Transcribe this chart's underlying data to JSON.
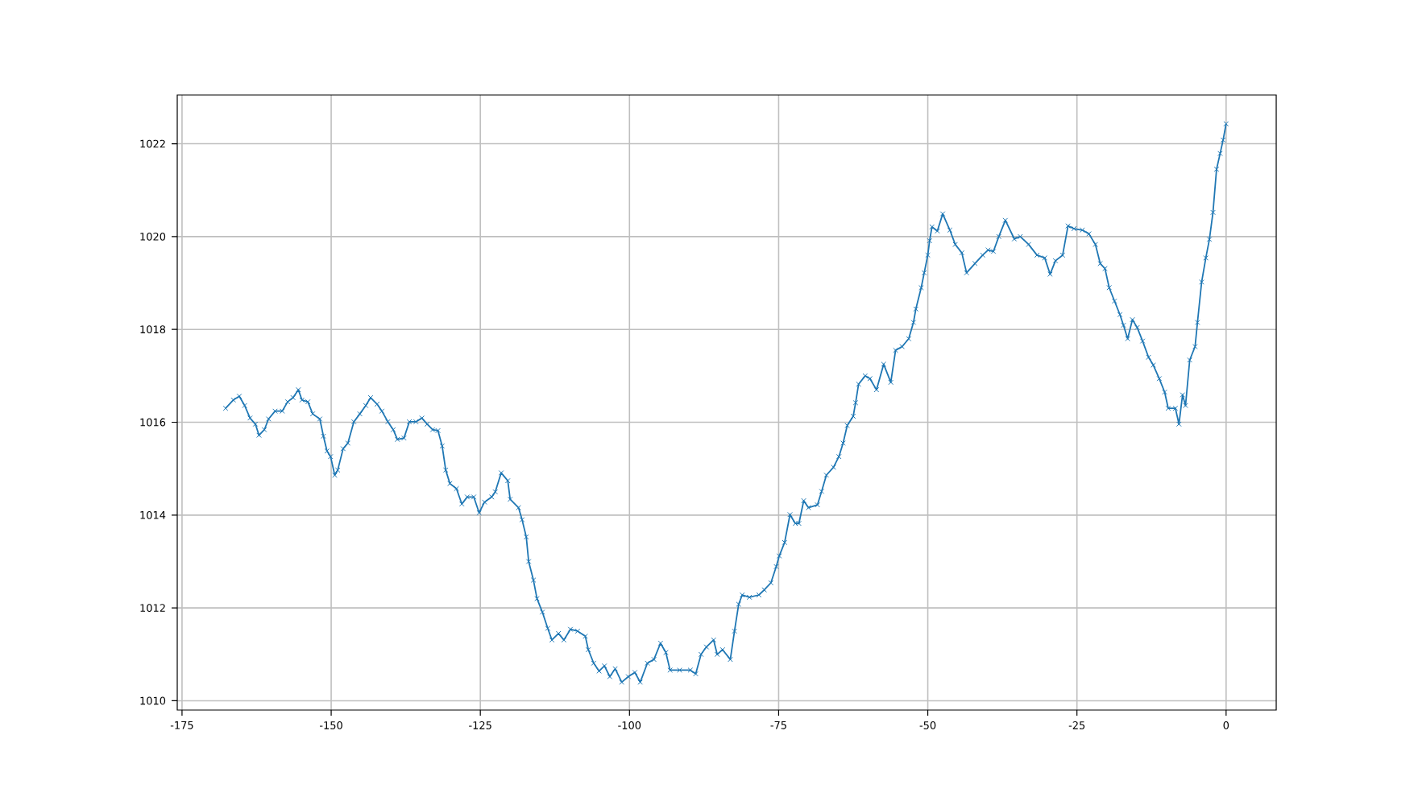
{
  "chart_data": {
    "type": "line",
    "xlim": [
      -175.8,
      8.4
    ],
    "ylim": [
      1009.8,
      1023.05
    ],
    "xticks": [
      -175,
      -150,
      -125,
      -100,
      -75,
      -50,
      -25,
      0
    ],
    "yticks": [
      1010,
      1012,
      1014,
      1016,
      1018,
      1020,
      1022
    ],
    "grid": true,
    "marker": "cross",
    "line_style": "solid",
    "series": [
      {
        "color": "#1f77b4",
        "x": [
          -167.7,
          -166.4,
          -165.4,
          -164.5,
          -163.6,
          -162.7,
          -162.1,
          -161.2,
          -160.5,
          -159.4,
          -158.2,
          -157.3,
          -156.4,
          -155.5,
          -154.9,
          -153.9,
          -153.1,
          -151.9,
          -151.3,
          -150.7,
          -150.1,
          -149.4,
          -148.9,
          -148,
          -147.2,
          -146.2,
          -145.2,
          -144.2,
          -143.4,
          -142.3,
          -141.5,
          -140.5,
          -139.6,
          -138.9,
          -137.8,
          -136.9,
          -135.8,
          -134.8,
          -133.9,
          -133,
          -132.1,
          -131.4,
          -130.8,
          -130.1,
          -129,
          -128.1,
          -127.2,
          -126.1,
          -125.2,
          -124.3,
          -123.1,
          -122.5,
          -121.5,
          -120.4,
          -120,
          -118.6,
          -118,
          -117.3,
          -116.9,
          -116.1,
          -115.5,
          -114.6,
          -113.7,
          -113,
          -111.9,
          -111,
          -109.9,
          -108.7,
          -107.4,
          -106.9,
          -106,
          -105.1,
          -104.2,
          -103.3,
          -102.4,
          -101.3,
          -100.2,
          -99.1,
          -98.2,
          -97,
          -95.9,
          -94.8,
          -93.9,
          -93.2,
          -91.6,
          -89.8,
          -88.9,
          -88,
          -87.1,
          -85.9,
          -85.3,
          -84.4,
          -83.1,
          -82.4,
          -81.7,
          -81.1,
          -79.9,
          -78.3,
          -77.4,
          -76.3,
          -75.4,
          -74.9,
          -74,
          -73.1,
          -72.2,
          -71.6,
          -70.8,
          -70,
          -68.5,
          -67.8,
          -67,
          -65.8,
          -64.9,
          -64.2,
          -63.5,
          -62.5,
          -62.1,
          -61.6,
          -60.5,
          -59.7,
          -58.6,
          -57.4,
          -56.2,
          -55.4,
          -54.3,
          -53.2,
          -52.4,
          -52,
          -51.1,
          -50.6,
          -50,
          -49.7,
          -49.3,
          -48.4,
          -47.5,
          -46.3,
          -45.4,
          -44.3,
          -43.5,
          -42.1,
          -40.8,
          -39.9,
          -39,
          -38.1,
          -37,
          -35.5,
          -34.5,
          -33.1,
          -31.7,
          -30.4,
          -29.5,
          -28.6,
          -27.4,
          -26.5,
          -25.5,
          -24.1,
          -23,
          -21.9,
          -21.1,
          -20.3,
          -19.6,
          -18.7,
          -17.8,
          -17.2,
          -16.5,
          -15.7,
          -14.9,
          -14,
          -13,
          -12.2,
          -11.2,
          -10.3,
          -9.7,
          -8.5,
          -7.9,
          -7.3,
          -6.8,
          -6.1,
          -5.2,
          -4.8,
          -4.1,
          -3.4,
          -2.8,
          -2.2,
          -1.6,
          -1,
          -0.5,
          0
        ],
        "values": [
          1016.3,
          1016.48,
          1016.56,
          1016.36,
          1016.09,
          1015.96,
          1015.72,
          1015.84,
          1016.07,
          1016.24,
          1016.24,
          1016.44,
          1016.53,
          1016.7,
          1016.48,
          1016.44,
          1016.18,
          1016.07,
          1015.7,
          1015.38,
          1015.26,
          1014.86,
          1014.97,
          1015.43,
          1015.55,
          1016.01,
          1016.18,
          1016.36,
          1016.53,
          1016.39,
          1016.24,
          1016.01,
          1015.84,
          1015.63,
          1015.66,
          1016.01,
          1016.01,
          1016.09,
          1015.96,
          1015.84,
          1015.82,
          1015.49,
          1014.97,
          1014.68,
          1014.57,
          1014.24,
          1014.39,
          1014.39,
          1014.05,
          1014.28,
          1014.39,
          1014.5,
          1014.91,
          1014.74,
          1014.34,
          1014.16,
          1013.9,
          1013.53,
          1013.0,
          1012.6,
          1012.2,
          1011.91,
          1011.56,
          1011.31,
          1011.45,
          1011.31,
          1011.54,
          1011.5,
          1011.39,
          1011.1,
          1010.81,
          1010.64,
          1010.75,
          1010.52,
          1010.69,
          1010.4,
          1010.52,
          1010.61,
          1010.4,
          1010.81,
          1010.89,
          1011.24,
          1011.04,
          1010.66,
          1010.66,
          1010.66,
          1010.58,
          1011.0,
          1011.16,
          1011.31,
          1011.0,
          1011.1,
          1010.89,
          1011.5,
          1012.08,
          1012.28,
          1012.23,
          1012.28,
          1012.39,
          1012.54,
          1012.89,
          1013.12,
          1013.41,
          1014.01,
          1013.82,
          1013.82,
          1014.31,
          1014.16,
          1014.22,
          1014.51,
          1014.86,
          1015.03,
          1015.26,
          1015.55,
          1015.93,
          1016.13,
          1016.42,
          1016.82,
          1017.0,
          1016.94,
          1016.7,
          1017.25,
          1016.86,
          1017.55,
          1017.63,
          1017.8,
          1018.15,
          1018.44,
          1018.9,
          1019.22,
          1019.6,
          1019.91,
          1020.21,
          1020.12,
          1020.49,
          1020.14,
          1019.83,
          1019.65,
          1019.22,
          1019.42,
          1019.6,
          1019.71,
          1019.68,
          1020.0,
          1020.35,
          1019.95,
          1020.0,
          1019.83,
          1019.6,
          1019.54,
          1019.19,
          1019.48,
          1019.6,
          1020.23,
          1020.17,
          1020.14,
          1020.06,
          1019.83,
          1019.42,
          1019.31,
          1018.9,
          1018.61,
          1018.32,
          1018.09,
          1017.8,
          1018.21,
          1018.04,
          1017.75,
          1017.4,
          1017.23,
          1016.94,
          1016.65,
          1016.3,
          1016.3,
          1015.96,
          1016.59,
          1016.36,
          1017.34,
          1017.63,
          1018.15,
          1019.02,
          1019.54,
          1019.94,
          1020.52,
          1021.45,
          1021.79,
          1022.08,
          1022.43
        ]
      }
    ]
  }
}
